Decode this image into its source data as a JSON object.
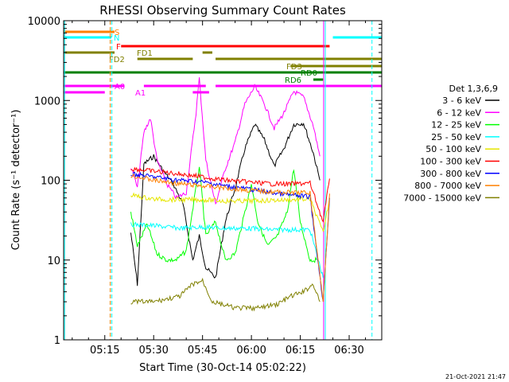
{
  "chart_data": {
    "type": "line",
    "title": "RHESSI Observing Summary Count Rates",
    "xlabel": "Start Time (30-Oct-14 05:02:22)",
    "ylabel": "Count Rate (s⁻¹ detector⁻¹)",
    "xlim": [
      "05:02:22",
      "06:40:00"
    ],
    "ylim": [
      1,
      10000
    ],
    "yscale": "log",
    "x_ticks": [
      "05:15",
      "05:30",
      "05:45",
      "06:00",
      "06:15",
      "06:30"
    ],
    "y_ticks": [
      "1",
      "10",
      "100",
      "1000",
      "10000"
    ],
    "legend_title": "Det 1,3,6,9",
    "footer_date": "21-Oct-2021 21:47",
    "series": [
      {
        "name": "3 - 6 keV",
        "color": "#000000",
        "points": [
          [
            "05:23",
            22
          ],
          [
            "05:25",
            5
          ],
          [
            "05:27",
            160
          ],
          [
            "05:30",
            200
          ],
          [
            "05:33",
            130
          ],
          [
            "05:36",
            90
          ],
          [
            "05:39",
            50
          ],
          [
            "05:42",
            10
          ],
          [
            "05:44",
            20
          ],
          [
            "05:46",
            8
          ],
          [
            "05:49",
            6
          ],
          [
            "05:52",
            30
          ],
          [
            "05:55",
            80
          ],
          [
            "05:58",
            250
          ],
          [
            "06:01",
            500
          ],
          [
            "06:04",
            320
          ],
          [
            "06:07",
            150
          ],
          [
            "06:10",
            250
          ],
          [
            "06:13",
            500
          ],
          [
            "06:16",
            520
          ],
          [
            "06:19",
            220
          ],
          [
            "06:21",
            100
          ]
        ]
      },
      {
        "name": "6 - 12 keV",
        "color": "#ff00ff",
        "points": [
          [
            "05:23",
            150
          ],
          [
            "05:25",
            80
          ],
          [
            "05:27",
            400
          ],
          [
            "05:29",
            600
          ],
          [
            "05:31",
            180
          ],
          [
            "05:34",
            90
          ],
          [
            "05:37",
            60
          ],
          [
            "05:40",
            70
          ],
          [
            "05:43",
            700
          ],
          [
            "05:44",
            1900
          ],
          [
            "05:46",
            180
          ],
          [
            "05:49",
            50
          ],
          [
            "05:52",
            140
          ],
          [
            "05:55",
            300
          ],
          [
            "05:58",
            900
          ],
          [
            "06:01",
            1500
          ],
          [
            "06:04",
            900
          ],
          [
            "06:07",
            450
          ],
          [
            "06:10",
            700
          ],
          [
            "06:13",
            1300
          ],
          [
            "06:16",
            1100
          ],
          [
            "06:19",
            480
          ],
          [
            "06:21",
            200
          ]
        ]
      },
      {
        "name": "12 - 25 keV",
        "color": "#00ff00",
        "points": [
          [
            "05:23",
            40
          ],
          [
            "05:25",
            15
          ],
          [
            "05:28",
            28
          ],
          [
            "05:31",
            12
          ],
          [
            "05:34",
            10
          ],
          [
            "05:37",
            10
          ],
          [
            "05:40",
            13
          ],
          [
            "05:43",
            80
          ],
          [
            "05:44",
            150
          ],
          [
            "05:46",
            20
          ],
          [
            "05:49",
            30
          ],
          [
            "05:52",
            10
          ],
          [
            "05:55",
            12
          ],
          [
            "05:58",
            40
          ],
          [
            "06:00",
            90
          ],
          [
            "06:02",
            30
          ],
          [
            "06:05",
            15
          ],
          [
            "06:08",
            20
          ],
          [
            "06:11",
            40
          ],
          [
            "06:13",
            140
          ],
          [
            "06:15",
            30
          ],
          [
            "06:18",
            10
          ],
          [
            "06:20",
            10
          ]
        ]
      },
      {
        "name": "25 - 50 keV",
        "color": "#00ffff",
        "points": [
          [
            "05:23",
            28
          ],
          [
            "05:30",
            27
          ],
          [
            "05:38",
            25
          ],
          [
            "05:45",
            26
          ],
          [
            "05:52",
            25
          ],
          [
            "05:59",
            25
          ],
          [
            "06:06",
            24
          ],
          [
            "06:12",
            24
          ],
          [
            "06:18",
            24
          ],
          [
            "06:22",
            6
          ]
        ]
      },
      {
        "name": "50 - 100 keV",
        "color": "#e6e600",
        "points": [
          [
            "05:23",
            65
          ],
          [
            "05:30",
            58
          ],
          [
            "05:38",
            57
          ],
          [
            "05:45",
            57
          ],
          [
            "05:52",
            55
          ],
          [
            "05:59",
            55
          ],
          [
            "06:06",
            56
          ],
          [
            "06:12",
            57
          ],
          [
            "06:18",
            58
          ],
          [
            "06:22",
            22
          ],
          [
            "06:24",
            60
          ]
        ]
      },
      {
        "name": "100 - 300 keV",
        "color": "#ff0000",
        "points": [
          [
            "05:23",
            140
          ],
          [
            "05:30",
            130
          ],
          [
            "05:38",
            120
          ],
          [
            "05:45",
            110
          ],
          [
            "05:52",
            100
          ],
          [
            "05:59",
            95
          ],
          [
            "06:06",
            90
          ],
          [
            "06:12",
            90
          ],
          [
            "06:18",
            92
          ],
          [
            "06:22",
            30
          ],
          [
            "06:24",
            105
          ]
        ]
      },
      {
        "name": "300 - 800 keV",
        "color": "#0000ff",
        "points": [
          [
            "05:23",
            120
          ],
          [
            "05:30",
            110
          ],
          [
            "05:38",
            100
          ],
          [
            "05:45",
            95
          ],
          [
            "05:52",
            85
          ],
          [
            "05:59",
            78
          ],
          [
            "06:06",
            70
          ],
          [
            "06:12",
            65
          ],
          [
            "06:18",
            62
          ],
          [
            "06:22",
            3
          ],
          [
            "06:24",
            60
          ]
        ]
      },
      {
        "name": "800 - 7000 keV",
        "color": "#ff8000",
        "points": [
          [
            "05:23",
            115
          ],
          [
            "05:30",
            100
          ],
          [
            "05:38",
            90
          ],
          [
            "05:45",
            85
          ],
          [
            "05:52",
            80
          ],
          [
            "05:59",
            75
          ],
          [
            "06:06",
            72
          ],
          [
            "06:12",
            70
          ],
          [
            "06:18",
            70
          ],
          [
            "06:22",
            3
          ],
          [
            "06:24",
            68
          ]
        ]
      },
      {
        "name": "7000 - 15000 keV",
        "color": "#808000",
        "points": [
          [
            "05:23",
            3
          ],
          [
            "05:30",
            3
          ],
          [
            "05:38",
            3.5
          ],
          [
            "05:42",
            5
          ],
          [
            "05:45",
            5.5
          ],
          [
            "05:48",
            3
          ],
          [
            "05:55",
            2.5
          ],
          [
            "06:02",
            2.5
          ],
          [
            "06:08",
            2.8
          ],
          [
            "06:12",
            3.5
          ],
          [
            "06:16",
            4
          ],
          [
            "06:19",
            5
          ],
          [
            "06:21",
            3
          ]
        ]
      }
    ],
    "flags": [
      {
        "label": "S",
        "color": "#ff8000",
        "bars": [
          [
            "05:02:22",
            "05:18"
          ]
        ]
      },
      {
        "label": "N",
        "color": "#00ffff",
        "bars": [
          [
            "05:02:22",
            "05:17"
          ],
          [
            "06:25",
            "06:40"
          ]
        ]
      },
      {
        "label": "F",
        "color": "#ff0000",
        "bars": [
          [
            "05:20",
            "06:24"
          ]
        ]
      },
      {
        "label": "FD1",
        "color": "#808000",
        "bars": [
          [
            "05:02:22",
            "05:18"
          ],
          [
            "05:45",
            "05:48"
          ]
        ]
      },
      {
        "label": "FD2",
        "color": "#808000",
        "bars": [
          [
            "05:25",
            "05:42"
          ],
          [
            "05:49",
            "06:40"
          ]
        ]
      },
      {
        "label": "FD3",
        "color": "#808000",
        "bars": [
          [
            "06:12",
            "06:40"
          ]
        ]
      },
      {
        "label": "RD0",
        "color": "#008000",
        "bars": [
          [
            "05:02:22",
            "06:40"
          ]
        ]
      },
      {
        "label": "RD6",
        "color": "#008000",
        "bars": [
          [
            "06:19",
            "06:22"
          ]
        ]
      },
      {
        "label": "A0",
        "color": "#ff00ff",
        "bars": [
          [
            "05:02:22",
            "05:21"
          ],
          [
            "05:27",
            "05:46"
          ],
          [
            "05:49",
            "06:40"
          ]
        ]
      },
      {
        "label": "A1",
        "color": "#ff00ff",
        "bars": [
          [
            "05:02:22",
            "05:15"
          ],
          [
            "05:42",
            "05:47"
          ]
        ]
      }
    ],
    "vlines": [
      {
        "time": "05:02:40",
        "color": "#00ffff",
        "style": "solid"
      },
      {
        "time": "05:16:40",
        "color": "#ff8000",
        "style": "dash"
      },
      {
        "time": "05:17:10",
        "color": "#00ffff",
        "style": "dash"
      },
      {
        "time": "06:22:10",
        "color": "#ff00ff",
        "style": "solid"
      },
      {
        "time": "06:22:40",
        "color": "#00ffff",
        "style": "solid"
      },
      {
        "time": "06:37:00",
        "color": "#00ffff",
        "style": "dash"
      }
    ]
  }
}
